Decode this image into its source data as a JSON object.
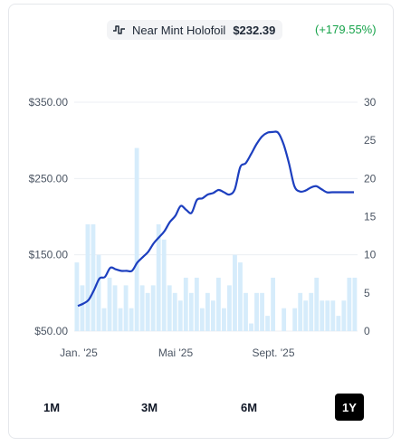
{
  "legend": {
    "icon": "line-pulse-icon",
    "label": "Near Mint Holofoil",
    "price": "$232.39",
    "change": "(+179.55%)",
    "change_color": "#16a34a"
  },
  "range_buttons": [
    {
      "label": "1M",
      "active": false
    },
    {
      "label": "3M",
      "active": false
    },
    {
      "label": "6M",
      "active": false
    },
    {
      "label": "1Y",
      "active": true
    }
  ],
  "colors": {
    "price_line": "#1d3fbf",
    "volume_bar": "#d6ecfb"
  },
  "chart_data": {
    "type": "line",
    "title": "",
    "x_tick_labels": [
      "Jan. '25",
      "Mai '25",
      "Sept. '25"
    ],
    "y_left": {
      "ticks": [
        "$350.00",
        "$250.00",
        "$150.00",
        "$50.00"
      ],
      "tick_values": [
        350,
        250,
        150,
        50
      ],
      "range": [
        50,
        350
      ]
    },
    "y_right": {
      "ticks": [
        "30",
        "25",
        "20",
        "15",
        "10",
        "5",
        "0"
      ],
      "tick_values": [
        30,
        25,
        20,
        15,
        10,
        5,
        0
      ],
      "range": [
        0,
        30
      ]
    },
    "grid": true,
    "series": [
      {
        "name": "Near Mint Holofoil",
        "axis": "left",
        "type": "line",
        "x": [
          0,
          1,
          2,
          3,
          4,
          5,
          6,
          7,
          8,
          9,
          10,
          11,
          12,
          13,
          14,
          15,
          16,
          17,
          18,
          19,
          20,
          21,
          22,
          23,
          24,
          25,
          26,
          27,
          28,
          29,
          30,
          31,
          32,
          33,
          34,
          35,
          36,
          37,
          38,
          39,
          40,
          41,
          42,
          43,
          44,
          45,
          46,
          47,
          48,
          49,
          50,
          51
        ],
        "values": [
          83,
          86,
          91,
          104,
          119,
          121,
          133,
          131,
          129,
          129,
          129,
          140,
          147,
          154,
          165,
          173,
          181,
          193,
          201,
          214,
          209,
          205,
          222,
          224,
          229,
          231,
          235,
          232,
          229,
          236,
          265,
          270,
          282,
          295,
          305,
          310,
          311,
          310,
          295,
          270,
          240,
          233,
          234,
          238,
          240,
          236,
          232,
          232,
          232,
          232,
          232,
          232
        ]
      },
      {
        "name": "",
        "axis": "right",
        "type": "bar",
        "values": [
          9,
          6,
          14,
          14,
          10,
          3,
          7,
          6,
          3,
          6,
          3,
          24,
          6,
          5,
          6,
          14,
          12,
          6,
          5,
          4,
          7,
          5,
          7,
          3,
          5,
          4,
          7,
          3,
          6,
          10,
          9,
          5,
          1,
          5,
          5,
          2,
          7,
          0,
          3,
          0,
          3,
          5,
          4,
          5,
          7,
          4,
          4,
          4,
          2,
          4,
          7,
          7
        ]
      }
    ]
  }
}
